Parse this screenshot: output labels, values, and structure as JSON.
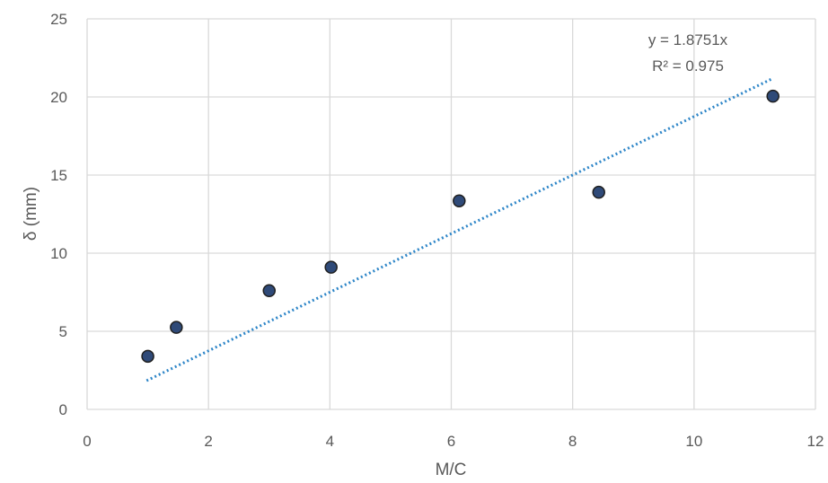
{
  "chart_data": {
    "type": "scatter",
    "title": "",
    "xlabel": "M/C",
    "ylabel": "δ (mm)",
    "xlim": [
      0,
      12
    ],
    "ylim": [
      0,
      25
    ],
    "x_ticks": [
      "0",
      "2",
      "4",
      "6",
      "8",
      "10",
      "12"
    ],
    "y_ticks": [
      "0",
      "5",
      "10",
      "15",
      "20",
      "25"
    ],
    "grid": true,
    "colors": {
      "marker_fill": "#2f4a78",
      "marker_edge": "#1f1f1f",
      "trendline": "#2e86c8",
      "grid": "#d9d9d9",
      "text": "#595959"
    },
    "series": [
      {
        "x": [
          1.0,
          1.47,
          3.0,
          4.02,
          6.13,
          8.43,
          11.3
        ],
        "y": [
          3.4,
          5.25,
          7.6,
          9.1,
          13.35,
          13.9,
          20.05
        ]
      }
    ],
    "trendline": {
      "type": "linear-through-origin",
      "slope": 1.8751,
      "x_range": [
        0.98,
        11.3
      ],
      "style": "dotted",
      "equation": "y = 1.8751x",
      "r_squared": "R² = 0.975"
    }
  }
}
